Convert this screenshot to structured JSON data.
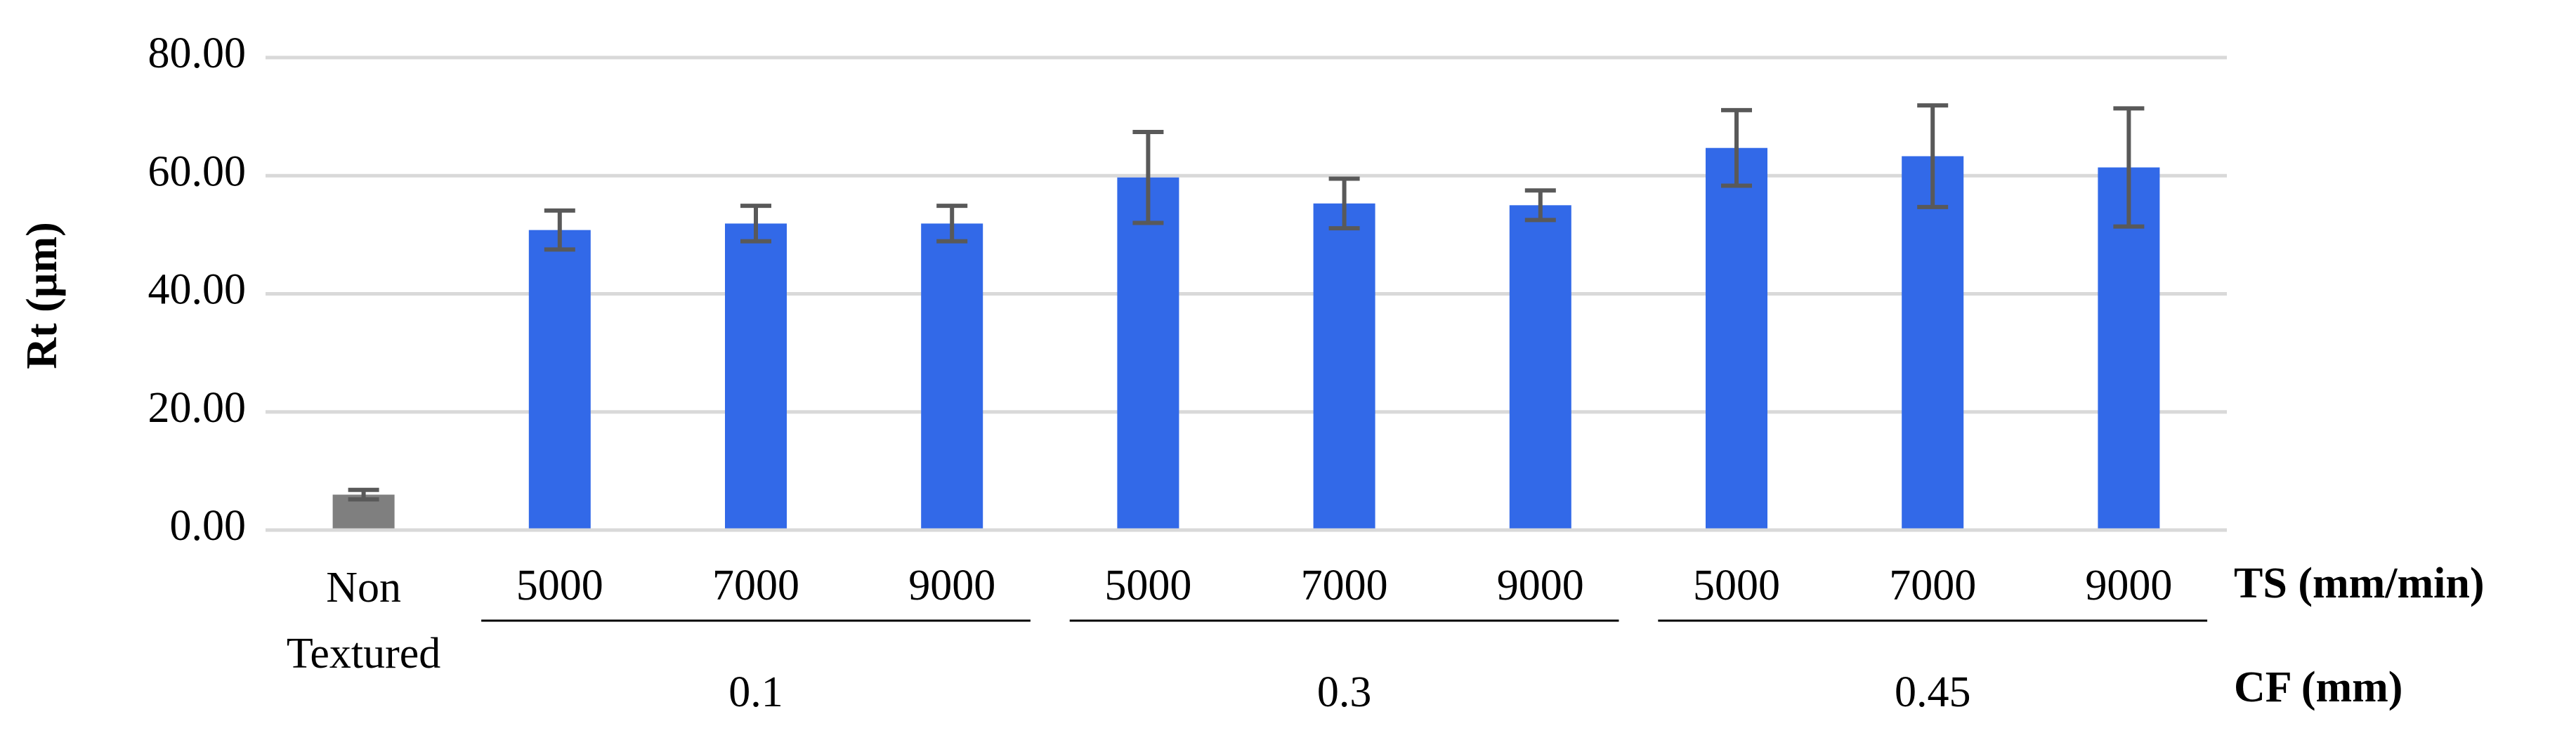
{
  "chart_data": {
    "type": "bar",
    "y_label": "Rt (µm)",
    "x_label": "TS (mm/min)",
    "group_label": "CF (mm)",
    "categories": [
      "Non Textured",
      "5000",
      "7000",
      "9000",
      "5000",
      "7000",
      "9000",
      "5000",
      "7000",
      "9000"
    ],
    "groups": [
      "0.1",
      "0.3",
      "0.45"
    ],
    "values": [
      6.0,
      50.8,
      51.9,
      51.9,
      59.7,
      55.3,
      55.0,
      64.7,
      63.3,
      61.4
    ],
    "errors": [
      0.8,
      3.3,
      3.0,
      3.0,
      7.7,
      4.2,
      2.5,
      6.4,
      8.6,
      10.0
    ],
    "colors": [
      "#7f7f7f",
      "#3269e8",
      "#3269e8",
      "#3269e8",
      "#3269e8",
      "#3269e8",
      "#3269e8",
      "#3269e8",
      "#3269e8",
      "#3269e8"
    ],
    "error_color": "#595959",
    "ylim": [
      0,
      80
    ],
    "yticks": [
      {
        "value": 0,
        "label": "0.00"
      },
      {
        "value": 20,
        "label": "20.00"
      },
      {
        "value": 40,
        "label": "40.00"
      },
      {
        "value": 60,
        "label": "60.00"
      },
      {
        "value": 80,
        "label": "80.00"
      }
    ],
    "grid": true
  }
}
